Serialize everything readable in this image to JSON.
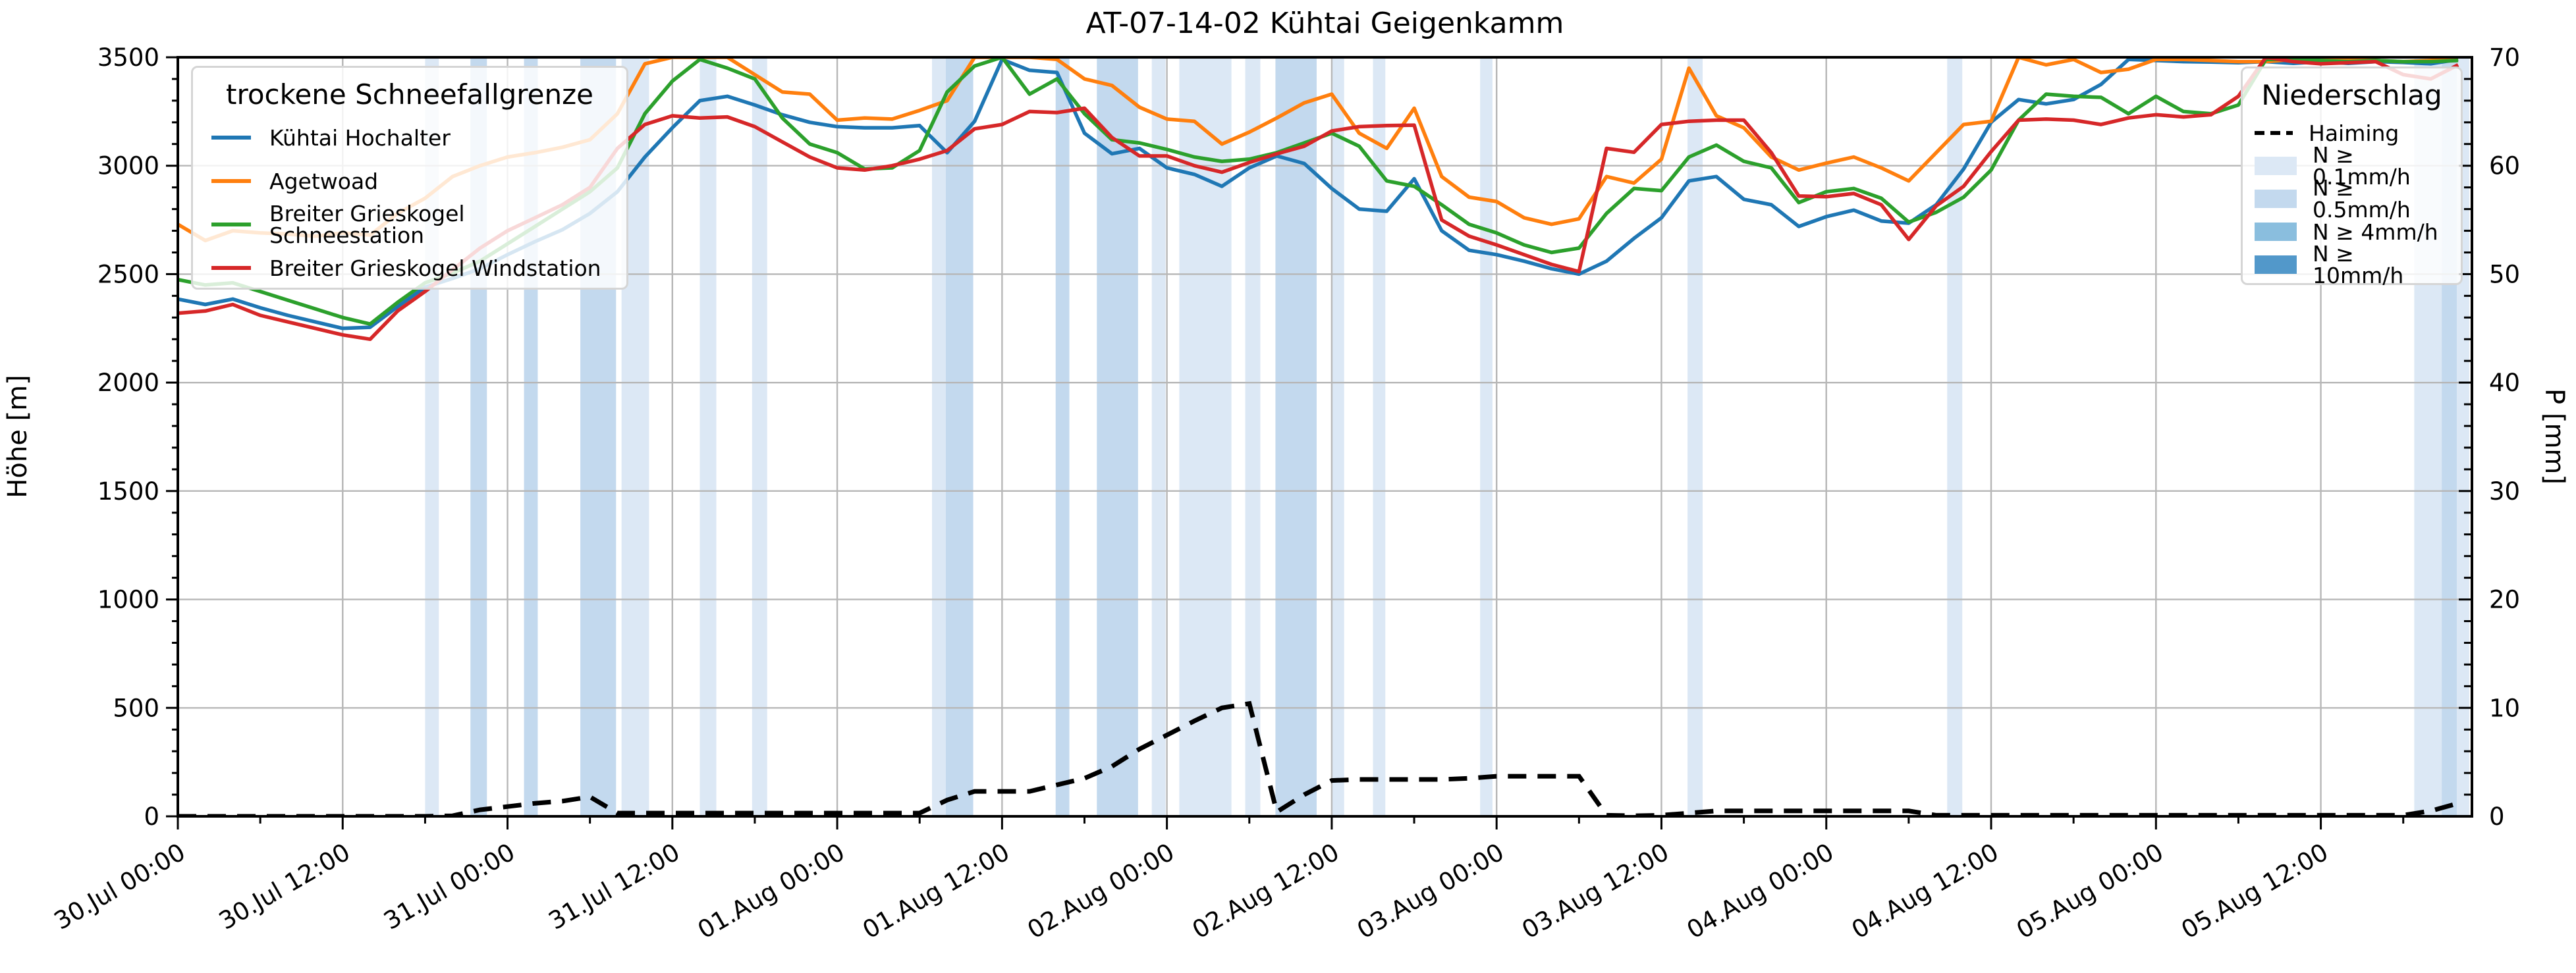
{
  "title": "AT-07-14-02 Kühtai Geigenkamm",
  "axes": {
    "ylabel_left": "Höhe [m]",
    "ylabel_right": "P [mm]"
  },
  "legend_snow": {
    "title": "trockene Schneefallgrenze",
    "items": [
      {
        "label": "Kühtai Hochalter",
        "color": "#1f77b4"
      },
      {
        "label": "Agetwoad",
        "color": "#ff7f0e"
      },
      {
        "label": "Breiter Grieskogel Schneestation",
        "color": "#2ca02c"
      },
      {
        "label": "Breiter Grieskogel Windstation",
        "color": "#d62728"
      }
    ]
  },
  "legend_precip": {
    "title": "Niederschlag",
    "line_item": {
      "label": "Haiming",
      "color": "#000000",
      "style": "dashed"
    },
    "band_items": [
      {
        "label": "N ≥ 0.1mm/h",
        "level": "0.1",
        "color": "#dce8f5"
      },
      {
        "label": "N ≥ 0.5mm/h",
        "level": "0.5",
        "color": "#c3d9ee"
      },
      {
        "label": "N ≥ 4mm/h",
        "level": "4",
        "color": "#8abede"
      },
      {
        "label": "N ≥ 10mm/h",
        "level": "10",
        "color": "#5298ca"
      }
    ]
  },
  "chart_data": {
    "type": "line",
    "title": "AT-07-14-02 Kühtai Geigenkamm",
    "xlabel": "",
    "ylabel_left": "Höhe [m]",
    "ylabel_right": "P [mm]",
    "x_unit": "hours since 30 Jul 00:00",
    "x_range_hours": [
      0,
      167
    ],
    "ylim_left": [
      0,
      3500
    ],
    "ylim_right": [
      0,
      70
    ],
    "grid": true,
    "left_ticks": [
      0,
      500,
      1000,
      1500,
      2000,
      2500,
      3000,
      3500
    ],
    "right_ticks": [
      0,
      10,
      20,
      30,
      40,
      50,
      60,
      70
    ],
    "left_minor_step": 100,
    "right_minor_step": 2,
    "x_minor_step_h": 6,
    "x_major_ticks": [
      {
        "h": 0,
        "label": "30.Jul 00:00"
      },
      {
        "h": 12,
        "label": "30.Jul 12:00"
      },
      {
        "h": 24,
        "label": "31.Jul 00:00"
      },
      {
        "h": 36,
        "label": "31.Jul 12:00"
      },
      {
        "h": 48,
        "label": "01.Aug 00:00"
      },
      {
        "h": 60,
        "label": "01.Aug 12:00"
      },
      {
        "h": 72,
        "label": "02.Aug 00:00"
      },
      {
        "h": 84,
        "label": "02.Aug 12:00"
      },
      {
        "h": 96,
        "label": "03.Aug 00:00"
      },
      {
        "h": 108,
        "label": "03.Aug 12:00"
      },
      {
        "h": 120,
        "label": "04.Aug 00:00"
      },
      {
        "h": 132,
        "label": "04.Aug 12:00"
      },
      {
        "h": 144,
        "label": "05.Aug 00:00"
      },
      {
        "h": 156,
        "label": "05.Aug 12:00"
      }
    ],
    "series_hours_start": 0,
    "series_hours_step": 2,
    "series": [
      {
        "name": "Kühtai Hochalter",
        "color": "#1f77b4",
        "axis": "left",
        "values": [
          2385,
          2360,
          2385,
          2345,
          2310,
          2280,
          2250,
          2255,
          2350,
          2440,
          2480,
          2525,
          2590,
          2650,
          2705,
          2780,
          2880,
          3040,
          3175,
          3300,
          3320,
          3280,
          3235,
          3200,
          3180,
          3175,
          3175,
          3185,
          3060,
          3205,
          3490,
          3440,
          3430,
          3150,
          3055,
          3080,
          2990,
          2960,
          2905,
          2990,
          3045,
          3010,
          2895,
          2800,
          2790,
          2940,
          2700,
          2610,
          2590,
          2560,
          2525,
          2500,
          2560,
          2665,
          2760,
          2930,
          2950,
          2845,
          2820,
          2720,
          2765,
          2795,
          2745,
          2735,
          2820,
          2985,
          3200,
          3305,
          3285,
          3305,
          3375,
          3490,
          3485,
          3480,
          3478,
          3475,
          3480,
          3472,
          3480,
          3472,
          3480,
          3476,
          3470,
          3490
        ]
      },
      {
        "name": "Agetwoad",
        "color": "#ff7f0e",
        "axis": "left",
        "values": [
          2730,
          2655,
          2700,
          2690,
          2685,
          2675,
          2690,
          2680,
          2780,
          2850,
          2950,
          3000,
          3040,
          3060,
          3085,
          3120,
          3240,
          3470,
          3500,
          3500,
          3500,
          3420,
          3340,
          3330,
          3210,
          3220,
          3215,
          3255,
          3300,
          3500,
          3500,
          3500,
          3490,
          3400,
          3370,
          3270,
          3215,
          3205,
          3100,
          3155,
          3220,
          3290,
          3330,
          3150,
          3080,
          3265,
          2950,
          2855,
          2835,
          2760,
          2730,
          2755,
          2950,
          2920,
          3030,
          3450,
          3230,
          3175,
          3040,
          2980,
          3012,
          3040,
          2990,
          2930,
          3060,
          3190,
          3205,
          3500,
          3465,
          3490,
          3430,
          3445,
          3490,
          3490,
          3485,
          3480,
          3480,
          3490,
          3485,
          3490,
          3485,
          3480,
          3485,
          3490
        ]
      },
      {
        "name": "Breiter Grieskogel Schneestation",
        "color": "#2ca02c",
        "axis": "left",
        "values": [
          2475,
          2450,
          2460,
          2420,
          2380,
          2340,
          2300,
          2270,
          2370,
          2460,
          2505,
          2560,
          2640,
          2720,
          2800,
          2880,
          2990,
          3240,
          3390,
          3490,
          3450,
          3400,
          3220,
          3100,
          3060,
          2985,
          2990,
          3070,
          3340,
          3460,
          3500,
          3330,
          3400,
          3240,
          3120,
          3105,
          3075,
          3040,
          3020,
          3030,
          3060,
          3105,
          3150,
          3090,
          2930,
          2905,
          2820,
          2730,
          2690,
          2635,
          2600,
          2620,
          2780,
          2895,
          2885,
          3040,
          3095,
          3020,
          2990,
          2830,
          2880,
          2895,
          2850,
          2740,
          2785,
          2855,
          2980,
          3210,
          3330,
          3320,
          3315,
          3240,
          3320,
          3250,
          3240,
          3280,
          3490,
          3490,
          3485,
          3480,
          3485,
          3480,
          3480,
          3485
        ]
      },
      {
        "name": "Breiter Grieskogel Windstation",
        "color": "#d62728",
        "axis": "left",
        "values": [
          2320,
          2330,
          2360,
          2310,
          2280,
          2250,
          2220,
          2200,
          2330,
          2420,
          2520,
          2620,
          2700,
          2760,
          2820,
          2900,
          3080,
          3190,
          3230,
          3220,
          3225,
          3180,
          3110,
          3040,
          2990,
          2980,
          3000,
          3030,
          3070,
          3170,
          3190,
          3250,
          3245,
          3265,
          3130,
          3045,
          3045,
          3000,
          2970,
          3015,
          3055,
          3090,
          3160,
          3180,
          3185,
          3187,
          2750,
          2675,
          2635,
          2590,
          2545,
          2512,
          3080,
          3062,
          3190,
          3205,
          3210,
          3210,
          3060,
          2860,
          2857,
          2872,
          2820,
          2660,
          2815,
          2905,
          3065,
          3210,
          3215,
          3210,
          3190,
          3220,
          3235,
          3225,
          3235,
          3320,
          3500,
          3480,
          3470,
          3475,
          3480,
          3420,
          3400,
          3465
        ]
      }
    ],
    "precip_line": {
      "name": "Haiming",
      "color": "#000000",
      "style": "dashed",
      "axis": "right",
      "values": [
        0,
        0,
        0,
        0,
        0,
        0,
        0,
        0,
        0,
        0,
        0.05,
        0.6,
        0.9,
        1.2,
        1.4,
        1.8,
        0.3,
        0.3,
        0.3,
        0.3,
        0.3,
        0.3,
        0.3,
        0.3,
        0.3,
        0.3,
        0.3,
        0.3,
        1.5,
        2.3,
        2.3,
        2.3,
        2.9,
        3.5,
        4.6,
        6.2,
        7.5,
        8.8,
        10.0,
        10.4,
        0.4,
        2.0,
        3.3,
        3.4,
        3.4,
        3.4,
        3.4,
        3.5,
        3.7,
        3.7,
        3.7,
        3.7,
        0.1,
        0.05,
        0.1,
        0.3,
        0.5,
        0.5,
        0.5,
        0.5,
        0.5,
        0.5,
        0.5,
        0.5,
        0.1,
        0.1,
        0.1,
        0.1,
        0.1,
        0.1,
        0.1,
        0.1,
        0.1,
        0.1,
        0.1,
        0.1,
        0.1,
        0.1,
        0.1,
        0.1,
        0.1,
        0.1,
        0.5,
        1.2
      ]
    },
    "precip_bands": [
      {
        "from_h": 18.0,
        "to_h": 19.0,
        "level": "0.1"
      },
      {
        "from_h": 21.3,
        "to_h": 22.5,
        "level": "0.5"
      },
      {
        "from_h": 25.2,
        "to_h": 26.2,
        "level": "0.5"
      },
      {
        "from_h": 29.3,
        "to_h": 31.9,
        "level": "0.5"
      },
      {
        "from_h": 32.3,
        "to_h": 34.3,
        "level": "0.1"
      },
      {
        "from_h": 38.0,
        "to_h": 39.2,
        "level": "0.1"
      },
      {
        "from_h": 41.8,
        "to_h": 42.9,
        "level": "0.1"
      },
      {
        "from_h": 54.9,
        "to_h": 55.9,
        "level": "0.1"
      },
      {
        "from_h": 55.9,
        "to_h": 57.9,
        "level": "0.5"
      },
      {
        "from_h": 63.9,
        "to_h": 64.9,
        "level": "0.5"
      },
      {
        "from_h": 66.9,
        "to_h": 69.9,
        "level": "0.5"
      },
      {
        "from_h": 70.9,
        "to_h": 71.9,
        "level": "0.1"
      },
      {
        "from_h": 72.9,
        "to_h": 76.7,
        "level": "0.1"
      },
      {
        "from_h": 77.7,
        "to_h": 78.8,
        "level": "0.1"
      },
      {
        "from_h": 79.9,
        "to_h": 82.9,
        "level": "0.5"
      },
      {
        "from_h": 84.0,
        "to_h": 84.9,
        "level": "0.1"
      },
      {
        "from_h": 87.0,
        "to_h": 87.9,
        "level": "0.1"
      },
      {
        "from_h": 94.8,
        "to_h": 95.7,
        "level": "0.1"
      },
      {
        "from_h": 109.9,
        "to_h": 111.0,
        "level": "0.1"
      },
      {
        "from_h": 128.8,
        "to_h": 129.9,
        "level": "0.1"
      },
      {
        "from_h": 162.8,
        "to_h": 164.8,
        "level": "0.1"
      },
      {
        "from_h": 164.8,
        "to_h": 165.9,
        "level": "0.5"
      },
      {
        "from_h": 165.9,
        "to_h": 166.8,
        "level": "0.1"
      }
    ],
    "band_colors": {
      "0.1": "#dce8f5",
      "0.5": "#c3d9ee",
      "4": "#8abede",
      "10": "#5298ca"
    },
    "legend_position": {
      "snowline": "upper left",
      "precip": "upper right"
    }
  }
}
